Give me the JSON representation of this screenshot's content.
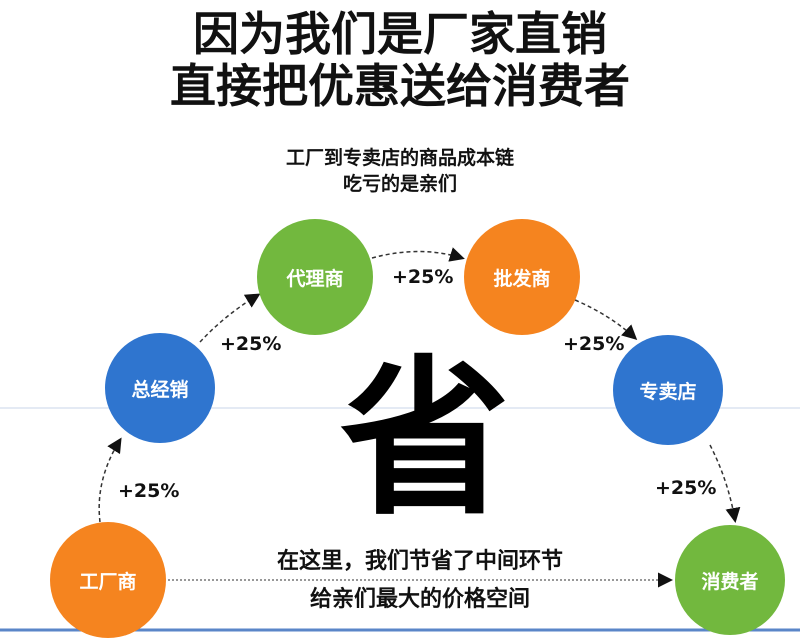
{
  "title": {
    "line1": "因为我们是厂家直销",
    "line2": "直接把优惠送给消费者"
  },
  "subtitle": {
    "line1": "工厂到专卖店的商品成本链",
    "line2": "吃亏的是亲们"
  },
  "nodes": [
    {
      "label": "工厂商",
      "color": "#F5841F"
    },
    {
      "label": "总经销",
      "color": "#2F75CF"
    },
    {
      "label": "代理商",
      "color": "#72B83E"
    },
    {
      "label": "批发商",
      "color": "#F5841F"
    },
    {
      "label": "专卖店",
      "color": "#2F75CF"
    },
    {
      "label": "消费者",
      "color": "#72B83E"
    }
  ],
  "markups": [
    "+25%",
    "+25%",
    "+25%",
    "+25%",
    "+25%"
  ],
  "center_char": "省",
  "note": {
    "line1": "在这里，我们节省了中间环节",
    "line2": "给亲们最大的价格空间"
  }
}
